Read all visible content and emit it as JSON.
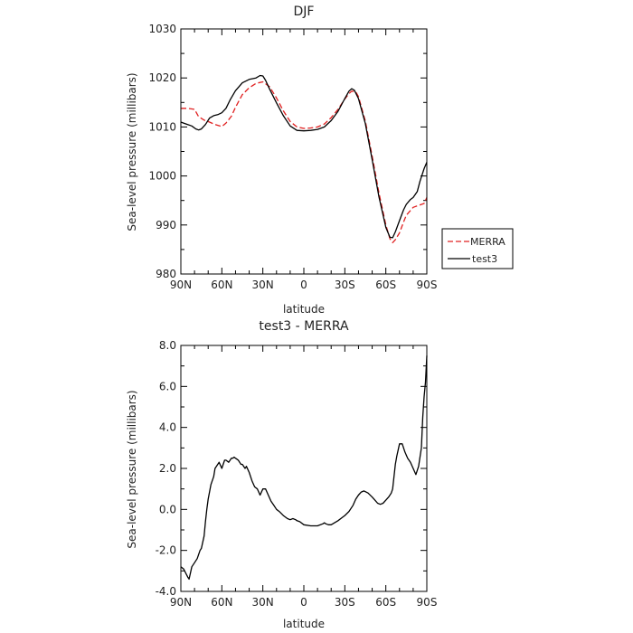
{
  "chart_data": [
    {
      "type": "line",
      "title": "DJF",
      "xlabel": "latitude",
      "ylabel": "Sea-level pressure (millibars)",
      "xlim": [
        90,
        -90
      ],
      "ylim": [
        980,
        1030
      ],
      "x_ticks": [
        90,
        60,
        30,
        0,
        -30,
        -60,
        -90
      ],
      "x_tick_labels": [
        "90N",
        "60N",
        "30N",
        "0",
        "30S",
        "60S",
        "90S"
      ],
      "y_ticks": [
        980,
        990,
        1000,
        1010,
        1020,
        1030
      ],
      "y_tick_labels": [
        "980",
        "990",
        "1000",
        "1010",
        "1020",
        "1030"
      ],
      "grid": false,
      "legend": {
        "placement": "right",
        "entries": [
          "MERRA",
          "test3"
        ]
      },
      "series": [
        {
          "name": "MERRA",
          "color": "#e02020",
          "dash": "dashed",
          "x": [
            90,
            85,
            80,
            77,
            73,
            70,
            65,
            60,
            57,
            53,
            50,
            45,
            40,
            35,
            30,
            25,
            20,
            15,
            10,
            5,
            0,
            -5,
            -10,
            -15,
            -20,
            -25,
            -30,
            -33,
            -35,
            -38,
            -40,
            -45,
            -50,
            -55,
            -60,
            -63,
            -65,
            -67,
            -70,
            -73,
            -75,
            -80,
            -85,
            -88,
            -90
          ],
          "y": [
            1013.8,
            1013.8,
            1013.6,
            1012.1,
            1011.4,
            1011.1,
            1010.5,
            1010.1,
            1010.8,
            1012.2,
            1014,
            1016.6,
            1018,
            1018.9,
            1019.2,
            1018.2,
            1015.9,
            1013.3,
            1011.1,
            1010,
            1009.7,
            1009.8,
            1010,
            1010.6,
            1011.9,
            1013.6,
            1015.7,
            1016.8,
            1017.3,
            1017.2,
            1016.2,
            1011.2,
            1004,
            996.5,
            990,
            987.2,
            986.4,
            987,
            988.4,
            990.6,
            992,
            993.6,
            994.1,
            994.4,
            995.6
          ]
        },
        {
          "name": "test3",
          "color": "#000000",
          "dash": "solid",
          "x": [
            90,
            88,
            85,
            82,
            79,
            77,
            75,
            72,
            69,
            66,
            63,
            60,
            57,
            54,
            50,
            45,
            40,
            35,
            32,
            30,
            28,
            25,
            20,
            15,
            10,
            5,
            0,
            -5,
            -10,
            -15,
            -20,
            -25,
            -30,
            -33,
            -35,
            -37,
            -40,
            -45,
            -50,
            -55,
            -60,
            -63,
            -65,
            -67,
            -70,
            -73,
            -75,
            -78,
            -80,
            -83,
            -85,
            -88,
            -90
          ],
          "y": [
            1011,
            1010.8,
            1010.5,
            1010.2,
            1009.6,
            1009.4,
            1009.6,
            1010.5,
            1011.8,
            1012.3,
            1012.5,
            1012.9,
            1013.8,
            1015.5,
            1017.4,
            1019,
            1019.7,
            1020,
            1020.5,
            1020.4,
            1019.5,
            1017.7,
            1014.9,
            1012.3,
            1010.2,
            1009.3,
            1009.2,
            1009.3,
            1009.5,
            1010,
            1011.3,
            1013.2,
            1015.8,
            1017.3,
            1017.8,
            1017.5,
            1015.8,
            1010.7,
            1003.3,
            995.7,
            989.5,
            987.5,
            987.4,
            988.6,
            990.9,
            993.1,
            994.2,
            995.2,
            995.6,
            996.8,
            998.9,
            1001.5,
            1002.8
          ]
        }
      ]
    },
    {
      "type": "line",
      "title": "test3 - MERRA",
      "xlabel": "latitude",
      "ylabel": "Sea-level pressure (millibars)",
      "xlim": [
        90,
        -90
      ],
      "ylim": [
        -4,
        8
      ],
      "x_ticks": [
        90,
        60,
        30,
        0,
        -30,
        -60,
        -90
      ],
      "x_tick_labels": [
        "90N",
        "60N",
        "30N",
        "0",
        "30S",
        "60S",
        "90S"
      ],
      "y_ticks": [
        -4,
        -2,
        0,
        2,
        4,
        6,
        8
      ],
      "y_tick_labels": [
        "-4.0",
        "-2.0",
        "0.0",
        "2.0",
        "4.0",
        "6.0",
        "8.0"
      ],
      "grid": false,
      "series": [
        {
          "color": "#000000",
          "dash": "solid",
          "x": [
            90,
            88,
            85,
            84,
            83,
            82,
            80,
            78,
            76,
            75,
            73,
            72,
            71,
            70,
            68,
            66,
            65,
            63,
            62,
            60,
            59,
            58,
            57,
            55,
            53,
            52,
            51,
            50,
            49,
            48,
            47,
            46,
            45,
            43,
            42,
            40,
            38,
            36,
            34,
            32,
            30,
            28,
            26,
            24,
            22,
            20,
            18,
            15,
            12,
            10,
            8,
            6,
            5,
            3,
            0,
            -5,
            -10,
            -14,
            -15,
            -16,
            -18,
            -20,
            -25,
            -28,
            -30,
            -33,
            -36,
            -38,
            -40,
            -42,
            -44,
            -47,
            -50,
            -52,
            -54,
            -56,
            -58,
            -60,
            -62,
            -63,
            -64,
            -65,
            -66,
            -67,
            -68,
            -70,
            -72,
            -74,
            -76,
            -78,
            -80,
            -82,
            -84,
            -86,
            -87,
            -88,
            -89,
            -90
          ],
          "y": [
            -2.8,
            -2.9,
            -3.3,
            -3.4,
            -3.1,
            -2.8,
            -2.6,
            -2.4,
            -2,
            -1.9,
            -1.3,
            -0.6,
            0,
            0.5,
            1.2,
            1.6,
            2,
            2.2,
            2.3,
            2,
            2.2,
            2.4,
            2.4,
            2.3,
            2.5,
            2.5,
            2.55,
            2.5,
            2.45,
            2.4,
            2.3,
            2.2,
            2.2,
            2,
            2.1,
            1.8,
            1.4,
            1.1,
            1,
            0.7,
            1,
            1,
            0.7,
            0.4,
            0.2,
            0,
            -0.1,
            -0.3,
            -0.45,
            -0.5,
            -0.45,
            -0.5,
            -0.55,
            -0.6,
            -0.75,
            -0.8,
            -0.8,
            -0.7,
            -0.65,
            -0.7,
            -0.75,
            -0.75,
            -0.55,
            -0.4,
            -0.3,
            -0.1,
            0.2,
            0.5,
            0.7,
            0.85,
            0.9,
            0.8,
            0.6,
            0.45,
            0.3,
            0.25,
            0.3,
            0.45,
            0.6,
            0.7,
            0.8,
            1,
            1.6,
            2.2,
            2.6,
            3.2,
            3.2,
            2.8,
            2.5,
            2.3,
            2,
            1.7,
            2.1,
            3,
            4.5,
            5.5,
            6.2,
            7.5
          ]
        }
      ]
    }
  ]
}
